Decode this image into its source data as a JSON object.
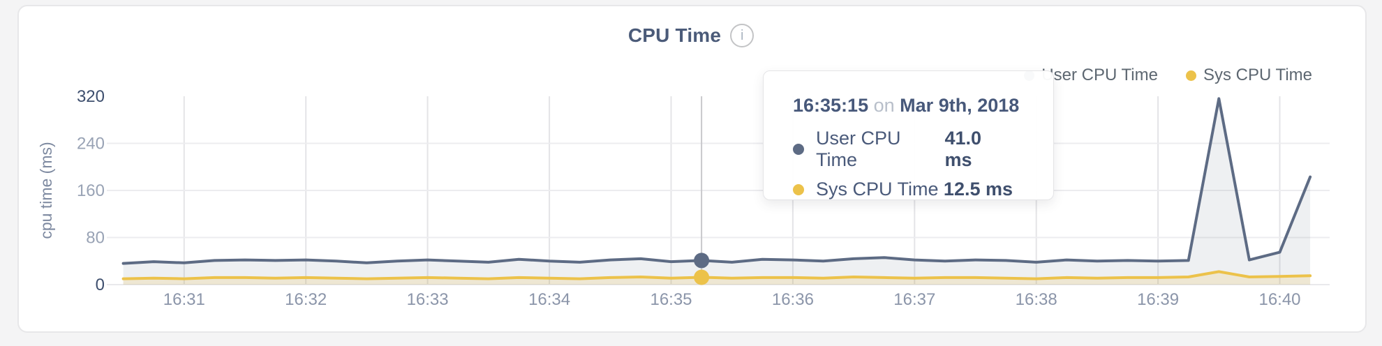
{
  "page": {
    "background": "#f4f4f5"
  },
  "card": {
    "background": "#ffffff",
    "border_color": "#e7e7e9"
  },
  "header": {
    "title": "CPU Time",
    "info_icon": "i"
  },
  "legend": {
    "items": [
      {
        "label": "User CPU Time",
        "color": "#5d6b84"
      },
      {
        "label": "Sys CPU Time",
        "color": "#ecc24a"
      }
    ]
  },
  "tooltip": {
    "time": "16:35:15",
    "connector": "on",
    "date": "Mar 9th, 2018",
    "rows": [
      {
        "label": "User CPU Time",
        "value": "41.0 ms",
        "color": "#5d6b84"
      },
      {
        "label": "Sys CPU Time",
        "value": "12.5 ms",
        "color": "#ecc24a"
      }
    ]
  },
  "chart_data": {
    "type": "area",
    "title": "CPU Time",
    "ylabel": "cpu time (ms)",
    "ylim": [
      0,
      320
    ],
    "y_ticks": [
      0,
      80,
      160,
      240,
      320
    ],
    "x_ticks": [
      "16:31",
      "16:32",
      "16:33",
      "16:34",
      "16:35",
      "16:36",
      "16:37",
      "16:38",
      "16:39",
      "16:40"
    ],
    "x_domain": [
      "16:30:26",
      "16:40:16"
    ],
    "grid": true,
    "legend_position": "top-right",
    "x": [
      "16:30:30",
      "16:30:45",
      "16:31:00",
      "16:31:15",
      "16:31:30",
      "16:31:45",
      "16:32:00",
      "16:32:15",
      "16:32:30",
      "16:32:45",
      "16:33:00",
      "16:33:15",
      "16:33:30",
      "16:33:45",
      "16:34:00",
      "16:34:15",
      "16:34:30",
      "16:34:45",
      "16:35:00",
      "16:35:15",
      "16:35:30",
      "16:35:45",
      "16:36:00",
      "16:36:15",
      "16:36:30",
      "16:36:45",
      "16:37:00",
      "16:37:15",
      "16:37:30",
      "16:37:45",
      "16:38:00",
      "16:38:15",
      "16:38:30",
      "16:38:45",
      "16:39:00",
      "16:39:15",
      "16:39:30",
      "16:39:45",
      "16:40:00",
      "16:40:15"
    ],
    "series": [
      {
        "name": "User CPU Time",
        "color": "#5d6b84",
        "fill": "rgba(93,107,132,0.10)",
        "values": [
          36,
          39,
          37,
          41,
          42,
          41,
          42,
          40,
          37,
          40,
          42,
          40,
          38,
          43,
          40,
          38,
          42,
          44,
          39,
          41,
          38,
          43,
          42,
          40,
          44,
          46,
          42,
          40,
          42,
          41,
          38,
          42,
          40,
          41,
          40,
          41,
          316,
          42,
          55,
          183
        ]
      },
      {
        "name": "Sys CPU Time",
        "color": "#ecc24a",
        "fill": "rgba(236,194,74,0.18)",
        "values": [
          10,
          11,
          10,
          12,
          12,
          11,
          12,
          11,
          10,
          11,
          12,
          11,
          10,
          12,
          11,
          10,
          12,
          13,
          11,
          12.5,
          11,
          12,
          12,
          11,
          13,
          12,
          11,
          12,
          12,
          11,
          10,
          12,
          11,
          12,
          12,
          13,
          22,
          13,
          14,
          15
        ]
      }
    ],
    "hover": {
      "x": "16:35:15",
      "date": "Mar 9th, 2018",
      "values": [
        41.0,
        12.5
      ]
    }
  }
}
